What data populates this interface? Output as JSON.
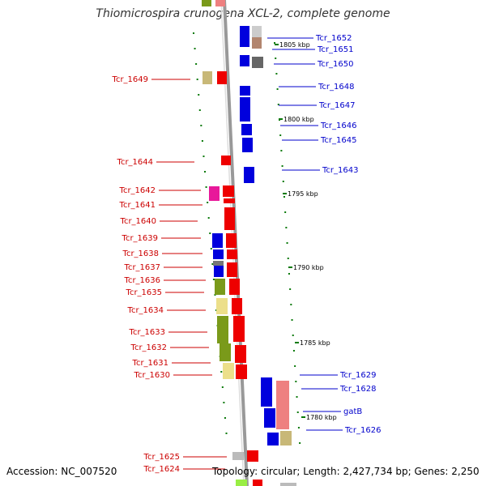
{
  "title": "Thiomicrospira crunogena XCL-2, complete genome",
  "accession": "Accession: NC_007520",
  "summary": "Topology: circular; Length: 2,427,734 bp; Genes: 2,250",
  "colors": {
    "forward_label": "#cc0000",
    "reverse_label": "#0000cc",
    "backbone": "#999999",
    "tick": "#0a7a0a"
  },
  "ruler_labels": [
    "1805 kbp",
    "1800 kbp",
    "1795 kbp",
    "1790 kbp",
    "1785 kbp",
    "1780 kbp"
  ],
  "genes_left": [
    "Tcr_1649",
    "Tcr_1644",
    "Tcr_1642",
    "Tcr_1641",
    "Tcr_1640",
    "Tcr_1639",
    "Tcr_1638",
    "Tcr_1637",
    "Tcr_1636",
    "Tcr_1635",
    "Tcr_1634",
    "Tcr_1633",
    "Tcr_1632",
    "Tcr_1631",
    "Tcr_1630",
    "Tcr_1625",
    "Tcr_1624"
  ],
  "genes_right": [
    "Tcr_1652",
    "Tcr_1651",
    "Tcr_1650",
    "Tcr_1648",
    "Tcr_1647",
    "Tcr_1646",
    "Tcr_1645",
    "Tcr_1643",
    "Tcr_1629",
    "Tcr_1628",
    "gatB",
    "Tcr_1626"
  ]
}
